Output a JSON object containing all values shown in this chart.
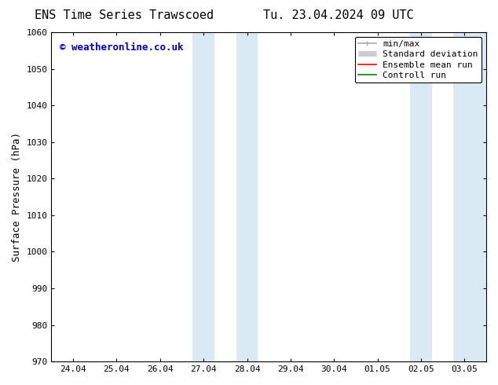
{
  "title_left": "ENS Time Series Trawscoed",
  "title_right": "Tu. 23.04.2024 09 UTC",
  "ylabel": "Surface Pressure (hPa)",
  "ylim": [
    970,
    1060
  ],
  "yticks": [
    970,
    980,
    990,
    1000,
    1010,
    1020,
    1030,
    1040,
    1050,
    1060
  ],
  "xtick_labels": [
    "24.04",
    "25.04",
    "26.04",
    "27.04",
    "28.04",
    "29.04",
    "30.04",
    "01.05",
    "02.05",
    "03.05"
  ],
  "xtick_positions": [
    0,
    1,
    2,
    3,
    4,
    5,
    6,
    7,
    8,
    9
  ],
  "xlim": [
    -0.5,
    9.5
  ],
  "shaded_regions": [
    {
      "x_start": 2.75,
      "x_end": 3.25,
      "color": "#daeaf5"
    },
    {
      "x_start": 3.75,
      "x_end": 4.25,
      "color": "#daeaf5"
    },
    {
      "x_start": 7.75,
      "x_end": 8.25,
      "color": "#daeaf5"
    },
    {
      "x_start": 8.75,
      "x_end": 9.5,
      "color": "#daeaf5"
    }
  ],
  "watermark_text": "© weatheronline.co.uk",
  "watermark_color": "#0000cc",
  "bg_color": "#ffffff",
  "tick_color": "#000000",
  "legend_items": [
    {
      "label": "min/max",
      "color": "#aaaaaa",
      "lw": 1.2
    },
    {
      "label": "Standard deviation",
      "color": "#cccccc",
      "lw": 5
    },
    {
      "label": "Ensemble mean run",
      "color": "#ff0000",
      "lw": 1.2
    },
    {
      "label": "Controll run",
      "color": "#008000",
      "lw": 1.2
    }
  ],
  "title_fontsize": 11,
  "axis_label_fontsize": 9,
  "tick_fontsize": 8,
  "legend_fontsize": 8,
  "watermark_fontsize": 9
}
